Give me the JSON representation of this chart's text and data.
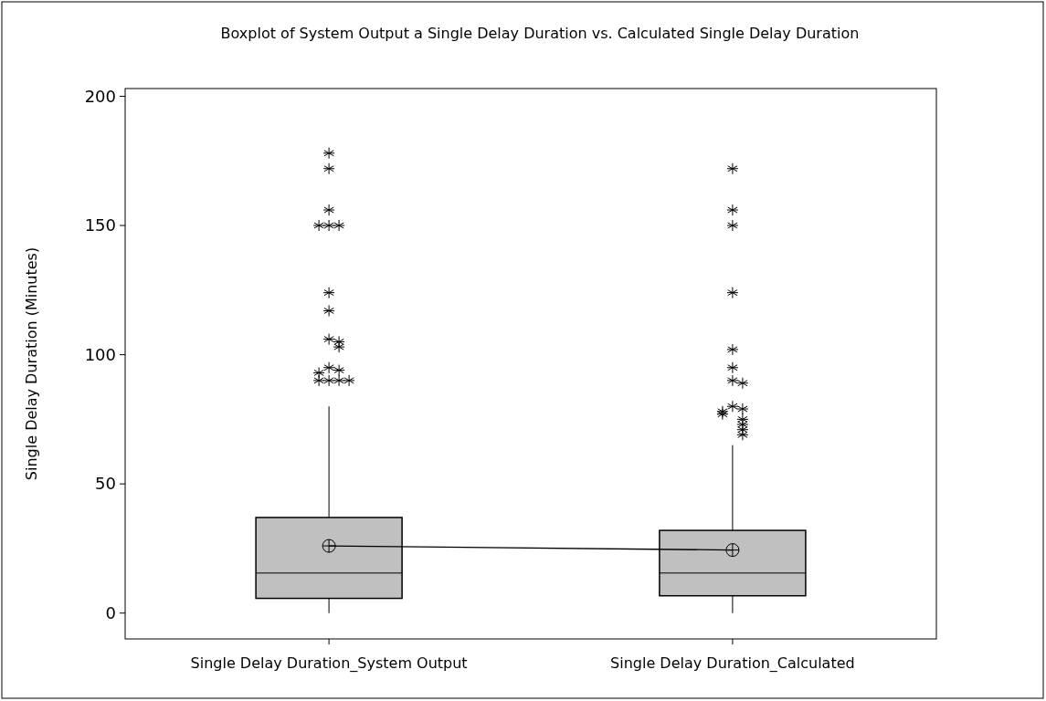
{
  "chart_data": {
    "type": "box",
    "title": "Boxplot of System Output a Single Delay Duration vs. Calculated Single Delay Duration",
    "ylabel": "Single Delay Duration (Minutes)",
    "categories": [
      "Single Delay Duration_System Output",
      "Single Delay Duration_Calculated"
    ],
    "ylim": [
      -10,
      203
    ],
    "yticks": [
      0,
      50,
      100,
      150,
      200
    ],
    "grid": false,
    "series": [
      {
        "type": "box",
        "color": "#c0c0c0",
        "boxes": [
          {
            "low": 0,
            "q1": 5.7,
            "median": 15.5,
            "q3": 37,
            "high": 80,
            "mean": 26,
            "outliers": [
              178,
              172,
              156,
              150,
              150,
              150,
              124,
              117,
              106,
              105,
              103,
              95,
              94,
              93,
              90,
              90,
              90,
              90
            ]
          },
          {
            "low": 0,
            "q1": 6.7,
            "median": 15.5,
            "q3": 32,
            "high": 65,
            "mean": 24.4,
            "outliers": [
              172,
              156,
              150,
              124,
              102,
              95,
              90,
              89,
              80,
              79,
              78,
              77,
              75,
              73,
              71,
              69
            ]
          }
        ]
      },
      {
        "type": "line",
        "color": "#000000",
        "values": [
          26,
          24.4
        ]
      }
    ]
  }
}
